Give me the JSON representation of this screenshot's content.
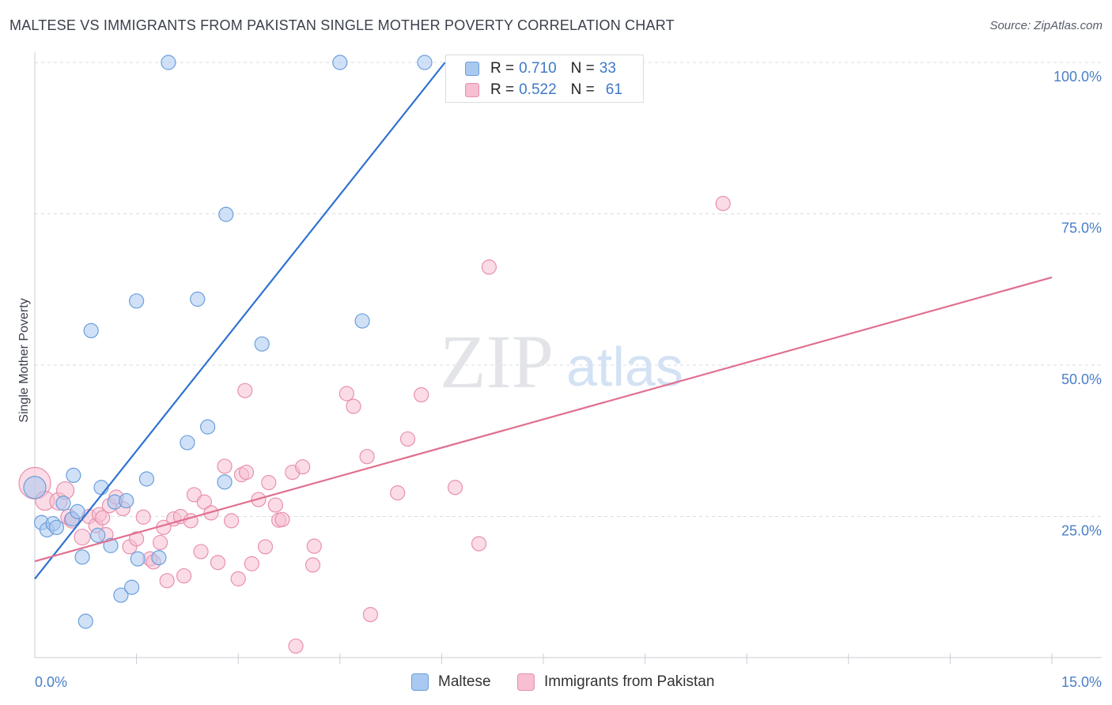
{
  "header": {
    "title": "MALTESE VS IMMIGRANTS FROM PAKISTAN SINGLE MOTHER POVERTY CORRELATION CHART",
    "source": "Source: ZipAtlas.com"
  },
  "watermark": {
    "zip": "ZIP",
    "atlas": "atlas"
  },
  "legend_top": {
    "rows": [
      {
        "r_label": "R =",
        "r_value": "0.710",
        "n_label": "N =",
        "n_value": "33"
      },
      {
        "r_label": "R =",
        "r_value": "0.522",
        "n_label": "N =",
        "n_value": "61"
      }
    ]
  },
  "legend_bottom": {
    "series1": "Maltese",
    "series2": "Immigrants from Pakistan"
  },
  "colors": {
    "blue_fill": "#a9c9f0",
    "blue_stroke": "#6a9fdc",
    "blue_line": "#2f72d0",
    "pink_fill": "#f7bfd1",
    "pink_stroke": "#e890ad",
    "pink_line": "#e0708f",
    "tick_text": "#4a7fc8",
    "grid": "#d8dbe1"
  },
  "chart_data": {
    "type": "scatter",
    "title": "MALTESE VS IMMIGRANTS FROM PAKISTAN SINGLE MOTHER POVERTY CORRELATION CHART",
    "xlabel": "",
    "ylabel": "Single Mother Poverty",
    "xlim": [
      0,
      15
    ],
    "ylim": [
      0,
      100
    ],
    "x_tick_labels": {
      "min": "0.0%",
      "max": "15.0%"
    },
    "y_ticks": [
      {
        "value": 25,
        "label": "25.0%"
      },
      {
        "value": 50,
        "label": "50.0%"
      },
      {
        "value": 75,
        "label": "75.0%"
      },
      {
        "value": 100,
        "label": "100.0%"
      }
    ],
    "legend_position": "top-center",
    "series": [
      {
        "name": "Maltese",
        "color": "blue",
        "r": 0.71,
        "n": 33,
        "trend": {
          "x0": 0.0,
          "y0": 14.7,
          "x1": 6.05,
          "y1": 100.0
        },
        "points": [
          [
            0.0,
            29.8,
            14
          ],
          [
            0.1,
            24.0,
            9
          ],
          [
            0.18,
            22.8,
            9
          ],
          [
            0.27,
            23.8,
            9
          ],
          [
            0.32,
            23.2,
            9
          ],
          [
            0.42,
            27.2,
            9
          ],
          [
            0.55,
            24.6,
            9
          ],
          [
            0.57,
            31.8,
            9
          ],
          [
            0.63,
            25.8,
            9
          ],
          [
            0.7,
            18.3,
            9
          ],
          [
            0.75,
            7.7,
            9
          ],
          [
            0.83,
            55.7,
            9
          ],
          [
            0.93,
            21.9,
            9
          ],
          [
            0.98,
            29.8,
            9
          ],
          [
            1.12,
            20.2,
            9
          ],
          [
            1.18,
            27.4,
            9
          ],
          [
            1.27,
            12.0,
            9
          ],
          [
            1.35,
            27.6,
            9
          ],
          [
            1.43,
            13.3,
            9
          ],
          [
            1.5,
            60.6,
            9
          ],
          [
            1.52,
            18.0,
            9
          ],
          [
            1.65,
            31.2,
            9
          ],
          [
            1.83,
            18.2,
            9
          ],
          [
            1.97,
            100.0,
            9
          ],
          [
            2.25,
            37.2,
            9
          ],
          [
            2.4,
            60.9,
            9
          ],
          [
            2.55,
            39.8,
            9
          ],
          [
            2.8,
            30.7,
            9
          ],
          [
            2.82,
            74.9,
            9
          ],
          [
            3.35,
            53.5,
            9
          ],
          [
            4.5,
            100.0,
            9
          ],
          [
            4.83,
            57.3,
            9
          ],
          [
            5.75,
            100.0,
            9
          ]
        ]
      },
      {
        "name": "Immigrants from Pakistan",
        "color": "pink",
        "r": 0.522,
        "n": 61,
        "trend": {
          "x0": 0.0,
          "y0": 17.6,
          "x1": 15.0,
          "y1": 64.5
        },
        "points": [
          [
            0.0,
            30.5,
            20
          ],
          [
            0.15,
            27.6,
            12
          ],
          [
            0.35,
            27.5,
            11
          ],
          [
            0.45,
            29.3,
            11
          ],
          [
            0.5,
            24.9,
            10
          ],
          [
            0.55,
            24.4,
            10
          ],
          [
            0.7,
            21.6,
            10
          ],
          [
            0.8,
            25.0,
            9
          ],
          [
            0.9,
            23.5,
            9
          ],
          [
            0.95,
            25.3,
            9
          ],
          [
            1.0,
            24.8,
            9
          ],
          [
            1.05,
            22.0,
            9
          ],
          [
            1.1,
            26.8,
            9
          ],
          [
            1.2,
            28.2,
            9
          ],
          [
            1.3,
            26.3,
            9
          ],
          [
            1.4,
            20.0,
            9
          ],
          [
            1.5,
            21.3,
            9
          ],
          [
            1.6,
            24.9,
            9
          ],
          [
            1.7,
            18.0,
            9
          ],
          [
            1.75,
            17.5,
            9
          ],
          [
            1.85,
            20.7,
            9
          ],
          [
            1.9,
            23.2,
            9
          ],
          [
            1.95,
            14.4,
            9
          ],
          [
            2.05,
            24.6,
            9
          ],
          [
            2.15,
            25.0,
            9
          ],
          [
            2.2,
            15.2,
            9
          ],
          [
            2.3,
            24.3,
            9
          ],
          [
            2.35,
            28.6,
            9
          ],
          [
            2.45,
            19.2,
            9
          ],
          [
            2.5,
            27.4,
            9
          ],
          [
            2.6,
            25.6,
            9
          ],
          [
            2.7,
            17.4,
            9
          ],
          [
            2.8,
            33.3,
            9
          ],
          [
            2.9,
            24.3,
            9
          ],
          [
            3.0,
            14.7,
            9
          ],
          [
            3.05,
            31.9,
            9
          ],
          [
            3.1,
            45.8,
            9
          ],
          [
            3.12,
            32.3,
            9
          ],
          [
            3.2,
            17.2,
            9
          ],
          [
            3.3,
            27.8,
            9
          ],
          [
            3.4,
            20.0,
            9
          ],
          [
            3.45,
            30.6,
            9
          ],
          [
            3.55,
            26.9,
            9
          ],
          [
            3.6,
            24.4,
            9
          ],
          [
            3.65,
            24.5,
            9
          ],
          [
            3.8,
            32.3,
            9
          ],
          [
            3.85,
            3.6,
            9
          ],
          [
            3.95,
            33.2,
            9
          ],
          [
            4.1,
            17.0,
            9
          ],
          [
            4.12,
            20.1,
            9
          ],
          [
            4.6,
            45.3,
            9
          ],
          [
            4.7,
            43.2,
            9
          ],
          [
            4.9,
            34.9,
            9
          ],
          [
            4.95,
            8.8,
            9
          ],
          [
            5.35,
            28.9,
            9
          ],
          [
            5.5,
            37.8,
            9
          ],
          [
            5.7,
            45.1,
            9
          ],
          [
            6.2,
            29.8,
            9
          ],
          [
            6.55,
            20.5,
            9
          ],
          [
            6.7,
            66.2,
            9
          ],
          [
            10.15,
            76.7,
            9
          ]
        ]
      }
    ]
  }
}
